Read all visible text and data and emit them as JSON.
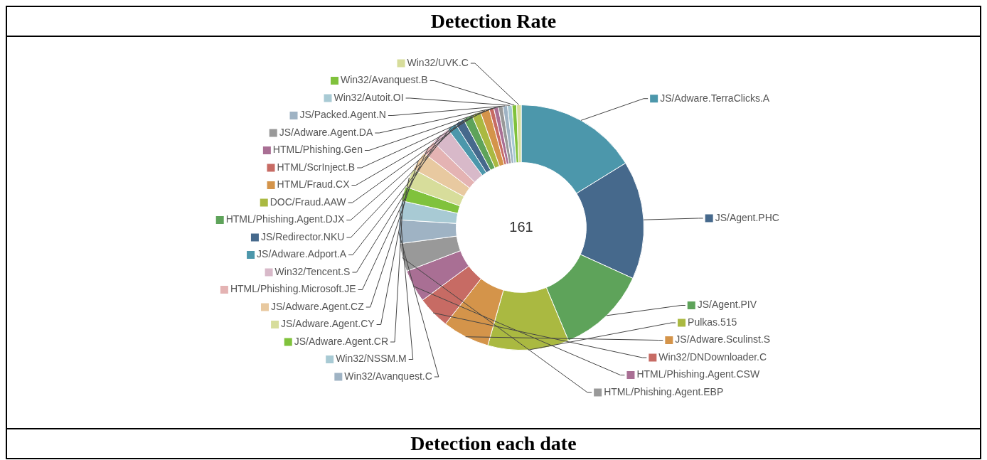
{
  "chart_data": {
    "type": "donut",
    "title": "Detection Rate",
    "categories": [
      "JS/Adware.TerraClicks.A",
      "JS/Agent.PHC",
      "JS/Agent.PIV",
      "Pulkas.515",
      "JS/Adware.Sculinst.S",
      "Win32/DNDownloader.C",
      "HTML/Phishing.Agent.CSW",
      "HTML/Phishing.Agent.EBP",
      "Win32/Avanquest.C",
      "Win32/NSSM.M",
      "JS/Adware.Agent.CR",
      "JS/Adware.Agent.CY",
      "JS/Adware.Agent.CZ",
      "HTML/Phishing.Microsoft.JE",
      "Win32/Tencent.S",
      "JS/Adware.Adport.A",
      "JS/Redirector.NKU",
      "HTML/Phishing.Agent.DJX",
      "DOC/Fraud.AAW",
      "HTML/Fraud.CX",
      "HTML/ScrInject.B",
      "HTML/Phishing.Gen",
      "JS/Adware.Agent.DA",
      "JS/Packed.Agent.N",
      "Win32/Autoit.OI",
      "Win32/Avanquest.B",
      "Win32/UVK.C"
    ],
    "values": [
      16.2,
      15.6,
      11.9,
      10.7,
      6.2,
      4.3,
      4.3,
      3.7,
      3.1,
      2.5,
      1.9,
      2.5,
      2.5,
      1.9,
      2.5,
      1.2,
      1.2,
      1.2,
      1.2,
      1.2,
      0.6,
      0.6,
      0.6,
      0.6,
      0.6,
      0.6,
      0.6
    ],
    "colors": [
      "#4c97ab",
      "#46698c",
      "#5ea35a",
      "#aab941",
      "#d4944a",
      "#c76b64",
      "#a96f94",
      "#999999",
      "#9fb3c4",
      "#a8cad4",
      "#80c23c",
      "#d7dd9b",
      "#e8c9a0",
      "#e4b3b3",
      "#d8b9c9",
      "#4c97ab",
      "#46698c",
      "#5ea35a",
      "#aab941",
      "#d4944a",
      "#c76b64",
      "#a96f94",
      "#999999",
      "#9fb3c4",
      "#a8cad4",
      "#80c23c",
      "#d7dd9b"
    ],
    "legend": "left",
    "annotations": [
      "161",
      "Detection each date"
    ]
  }
}
